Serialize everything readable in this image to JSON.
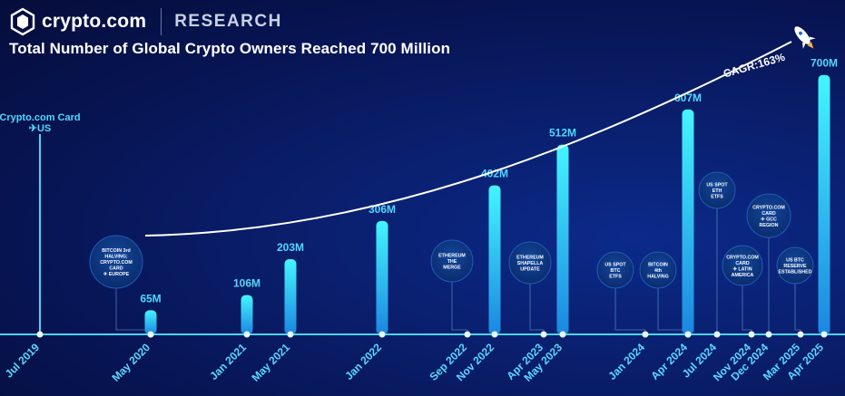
{
  "header": {
    "brand": "crypto.com",
    "section": "RESEARCH"
  },
  "title": "Total Number of Global Crypto Owners Reached 700 Million",
  "cagr_label": "CAGR:163%",
  "colors": {
    "bar_top": "#3ef3ff",
    "bar_bottom": "#1c8ee6",
    "label": "#4fd8ff",
    "date_label": "#5ad8ff",
    "axis": "#49d6f5",
    "bubble": "#0e3a86"
  },
  "chart_data": {
    "type": "bar",
    "title": "Total Number of Global Crypto Owners Reached 700 Million",
    "unit": "M",
    "timeline": [
      "Jul 2019",
      "May 2020",
      "Jan 2021",
      "May 2021",
      "Jan 2022",
      "Sep 2022",
      "Nov 2022",
      "Apr 2023",
      "May 2023",
      "Jan 2024",
      "Apr 2024",
      "Jul 2024",
      "Nov 2024",
      "Dec 2024",
      "Mar 2025",
      "Apr 2025"
    ],
    "categories": [
      "May 2020",
      "Jan 2021",
      "May 2021",
      "Jan 2022",
      "Nov 2022",
      "May 2023",
      "Apr 2024",
      "Apr 2025"
    ],
    "values": [
      65,
      106,
      203,
      306,
      402,
      512,
      607,
      700
    ],
    "value_labels": [
      "65M",
      "106M",
      "203M",
      "306M",
      "402M",
      "512M",
      "607M",
      "700M"
    ],
    "ylim": [
      0,
      780
    ],
    "trend": "CAGR:163%",
    "events": [
      {
        "date": "Jul 2019",
        "lines": [
          "Crypto.com Card",
          "✈US"
        ]
      },
      {
        "date": "May 2020",
        "lines": [
          "BITCOIN 3rd",
          "HALVING;",
          "CRYPTO.COM",
          "CARD",
          "✈ EUROPE"
        ]
      },
      {
        "date": "Sep 2022",
        "lines": [
          "ETHEREUM",
          "THE",
          "MERGE"
        ]
      },
      {
        "date": "Apr 2023",
        "lines": [
          "ETHEREUM",
          "SHAPELLA",
          "UPDATE"
        ]
      },
      {
        "date": "Jan 2024",
        "lines": [
          "US SPOT",
          "BTC",
          "ETFS"
        ]
      },
      {
        "date": "Apr 2024",
        "lines": [
          "BITCOIN",
          "4th",
          "HALVING"
        ]
      },
      {
        "date": "Jul 2024",
        "lines": [
          "US SPOT",
          "ETH",
          "ETFS"
        ]
      },
      {
        "date": "Nov 2024",
        "lines": [
          "CRYPTO.COM",
          "CARD",
          "✈ LATIN",
          "AMERICA"
        ]
      },
      {
        "date": "Dec 2024",
        "lines": [
          "CRYPTO.COM",
          "CARD",
          "✈ GCC",
          "REGION"
        ]
      },
      {
        "date": "Mar 2025",
        "lines": [
          "US BTC",
          "RESERVE",
          "ESTABLISHED"
        ]
      }
    ]
  }
}
